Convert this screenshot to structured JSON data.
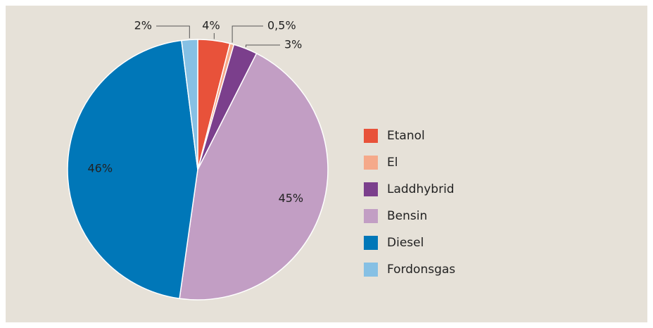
{
  "chart_data": {
    "type": "pie",
    "categories": [
      "Etanol",
      "El",
      "Laddhybrid",
      "Bensin",
      "Diesel",
      "Fordonsgas"
    ],
    "values": [
      4,
      0.5,
      3,
      45,
      46,
      2
    ],
    "value_labels": [
      "4%",
      "0,5%",
      "3%",
      "45%",
      "46%",
      "2%"
    ],
    "colors": [
      "#e8523a",
      "#f5a98a",
      "#7b3f8c",
      "#c29ec4",
      "#0077b8",
      "#86c0e4"
    ],
    "legend": "right"
  }
}
